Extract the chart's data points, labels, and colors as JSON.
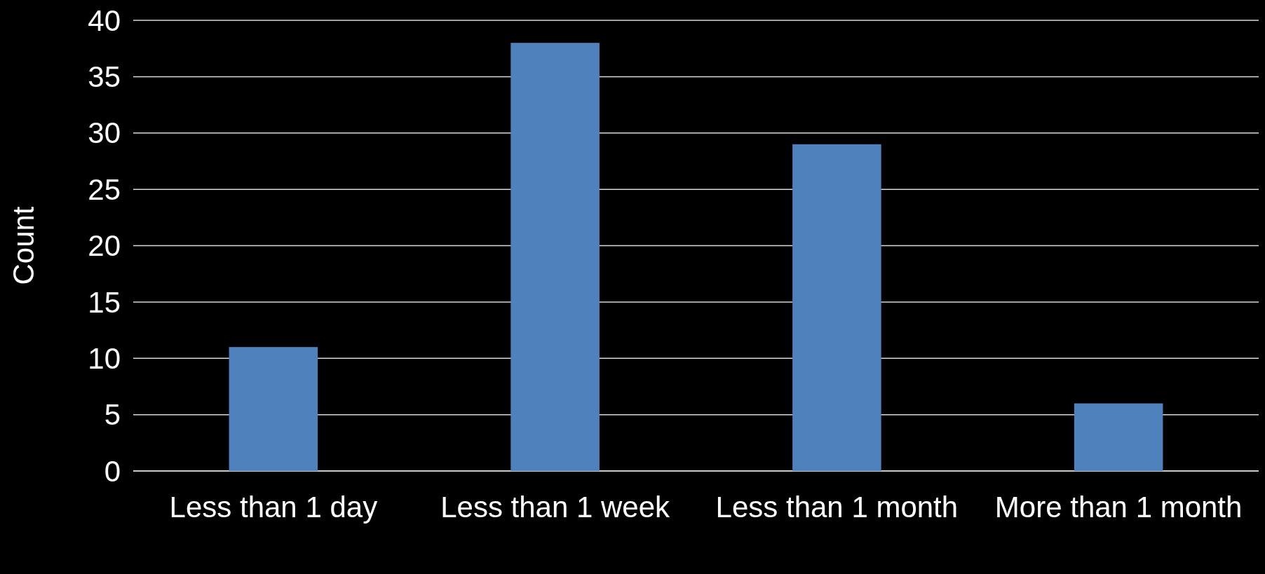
{
  "chart_data": {
    "type": "bar",
    "ylabel": "Count",
    "categories": [
      "Less than 1 day",
      "Less than 1 week",
      "Less than 1 month",
      "More than 1 month"
    ],
    "values": [
      11,
      38,
      29,
      6
    ],
    "color": "#4f81bd",
    "ylim": [
      0,
      40
    ],
    "yticks": [
      0,
      5,
      10,
      15,
      20,
      25,
      30,
      35,
      40
    ],
    "grid": "y"
  }
}
